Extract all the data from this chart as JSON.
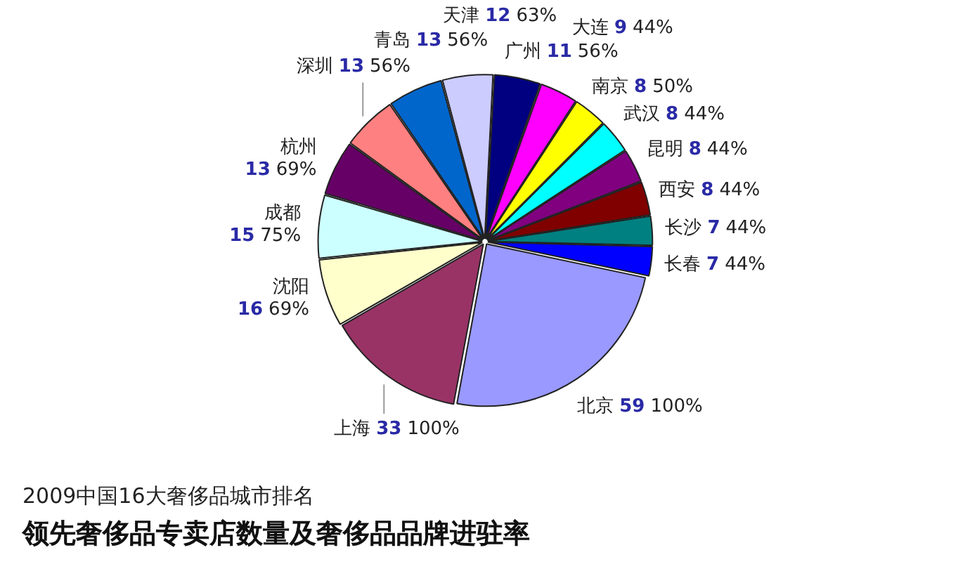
{
  "chart_data": {
    "type": "pie",
    "title": "2009中国16大奢侈品城市排名",
    "subtitle": "领先奢侈品专卖店数量及奢侈品品牌进驻率",
    "categories": [
      "北京",
      "上海",
      "沈阳",
      "成都",
      "杭州",
      "深圳",
      "青岛",
      "天津",
      "广州",
      "大连",
      "南京",
      "武汉",
      "昆明",
      "西安",
      "长沙",
      "长春"
    ],
    "values": [
      59,
      33,
      16,
      15,
      13,
      13,
      13,
      12,
      11,
      9,
      8,
      8,
      8,
      8,
      7,
      7
    ],
    "colors": [
      "#9999ff",
      "#993366",
      "#ffffcc",
      "#ccffff",
      "#660066",
      "#ff8080",
      "#0066cc",
      "#ccccff",
      "#000080",
      "#ff00ff",
      "#ffff00",
      "#00ffff",
      "#800080",
      "#800000",
      "#008080",
      "#0000ff"
    ],
    "data_labels": true,
    "annotations": [
      {
        "text": "100%",
        "x": "北京"
      },
      {
        "text": "100%",
        "x": "上海"
      },
      {
        "text": "69%",
        "x": "沈阳"
      },
      {
        "text": "75%",
        "x": "成都"
      },
      {
        "text": "69%",
        "x": "杭州"
      },
      {
        "text": "56%",
        "x": "深圳"
      },
      {
        "text": "56%",
        "x": "青岛"
      },
      {
        "text": "63%",
        "x": "天津"
      },
      {
        "text": "56%",
        "x": "广州"
      },
      {
        "text": "44%",
        "x": "大连"
      },
      {
        "text": "50%",
        "x": "南京"
      },
      {
        "text": "44%",
        "x": "武汉"
      },
      {
        "text": "44%",
        "x": "昆明"
      },
      {
        "text": "44%",
        "x": "西安"
      },
      {
        "text": "44%",
        "x": "长沙"
      },
      {
        "text": "44%",
        "x": "长春"
      }
    ]
  }
}
